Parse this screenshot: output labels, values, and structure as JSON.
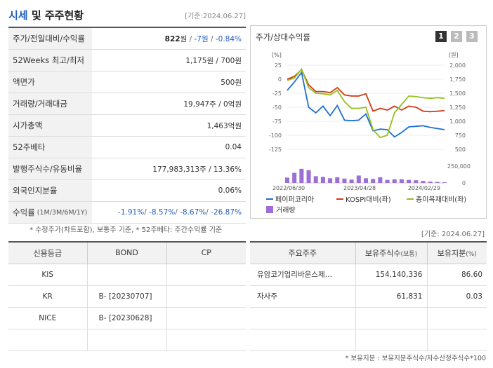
{
  "header": {
    "title_part1": "시세",
    "title_part2": " 및 주주현황",
    "base_date": "[기준:2024.06.27]"
  },
  "price_table": {
    "rows": [
      {
        "label": "주가/전일대비/수익률"
      },
      {
        "label": "52Weeks 최고/최저",
        "value": "1,175원 / 700원"
      },
      {
        "label": "액면가",
        "value": "500원"
      },
      {
        "label": "거래량/거래대금",
        "value": "19,947주 / 0억원"
      },
      {
        "label": "시가총액",
        "value": "1,463억원"
      },
      {
        "label": "52주베타",
        "value": "0.04"
      },
      {
        "label": "발행주식수/유동비율",
        "value": "177,983,313주 / 13.36%"
      },
      {
        "label": "외국인지분율",
        "value": "0.06%"
      },
      {
        "label": "수익률",
        "sub": "(1M/3M/6M/1Y)"
      }
    ],
    "price": "822",
    "price_unit": "원",
    "change": "-7원",
    "change_rate": "-0.84%",
    "returns": [
      "-1.91%",
      "-8.57%",
      "-8.67%",
      "-26.87%"
    ]
  },
  "footnote_left": "* 수정주가(차트포함), 보통주 기준, * 52주베타: 주간수익률 기준",
  "chart": {
    "title": "주가/상대수익률",
    "buttons": [
      "1",
      "2",
      "3"
    ],
    "active_button": 0,
    "left_unit": "[%]",
    "right_unit": "[원]",
    "colors": {
      "stock": "#1f6fd1",
      "kospi": "#d03a10",
      "material": "#94c11f",
      "volume": "#9b6fd6"
    }
  },
  "chart_data": {
    "type": "line",
    "x_labels": [
      "2022/06/30",
      "2023/04/28",
      "2024/02/29"
    ],
    "left_axis": {
      "ticks": [
        "25",
        "0",
        "-25",
        "-50",
        "-75",
        "-100",
        "-125"
      ],
      "range": [
        -125,
        25
      ]
    },
    "right_axis": {
      "ticks": [
        "2,000",
        "1,750",
        "1,500",
        "1,250",
        "1,000",
        "750",
        "500"
      ],
      "range": [
        500,
        2000
      ]
    },
    "volume_axis": {
      "ticks": [
        "250,000",
        "0"
      ],
      "range": [
        0,
        250000
      ]
    },
    "series": [
      {
        "name": "페이퍼코리아",
        "values": [
          -20,
          -5,
          12,
          -50,
          -60,
          -48,
          -65,
          -47,
          -73,
          -74,
          -73,
          -62,
          -92,
          -89,
          -90,
          -103,
          -95,
          -85,
          -84,
          -83,
          -86,
          -88,
          -90
        ]
      },
      {
        "name": "KOSPI대비(좌)",
        "values": [
          0,
          5,
          17,
          -10,
          -22,
          -22,
          -24,
          -15,
          -28,
          -30,
          -30,
          -26,
          -57,
          -52,
          -55,
          -48,
          -55,
          -48,
          -50,
          -57,
          -58,
          -57,
          -56
        ]
      },
      {
        "name": "종이목재대비(좌)",
        "values": [
          -2,
          2,
          18,
          -15,
          -25,
          -26,
          -28,
          -20,
          -40,
          -52,
          -52,
          -50,
          -90,
          -104,
          -100,
          -60,
          -45,
          -30,
          -31,
          -33,
          -34,
          -33,
          -34
        ]
      }
    ],
    "volume": [
      80000,
      150000,
      210000,
      190000,
      100000,
      90000,
      70000,
      85000,
      65000,
      50000,
      110000,
      70000,
      60000,
      85000,
      45000,
      55000,
      55000,
      45000,
      40000,
      30000,
      20000,
      15000,
      10000
    ],
    "legend": [
      "페이퍼코리아",
      "KOSPI대비(좌)",
      "종이목재대비(좌)",
      "거래량"
    ]
  },
  "base_date_mid": "[기준: 2024.06.27]",
  "credit": {
    "headers": [
      "신용등급",
      "BOND",
      "CP"
    ],
    "rows": [
      {
        "agency": "KIS",
        "bond": "",
        "cp": ""
      },
      {
        "agency": "KR",
        "bond": "B-  [20230707]",
        "cp": ""
      },
      {
        "agency": "NICE",
        "bond": "B-  [20230628]",
        "cp": ""
      },
      {
        "agency": "",
        "bond": "",
        "cp": ""
      }
    ]
  },
  "holders": {
    "headers": [
      "주요주주",
      "보유주식수",
      "(보통)",
      "보유지분",
      "(%)"
    ],
    "rows": [
      {
        "name": "유암코기업리바운스제…",
        "shares": "154,140,336",
        "pct": "86.60"
      },
      {
        "name": "자사주",
        "shares": "61,831",
        "pct": "0.03"
      },
      {
        "name": "",
        "shares": "",
        "pct": ""
      },
      {
        "name": "",
        "shares": "",
        "pct": ""
      }
    ]
  },
  "footnote_right": "* 보유지분 : 보유지분주식수/자수산정주식수*100"
}
